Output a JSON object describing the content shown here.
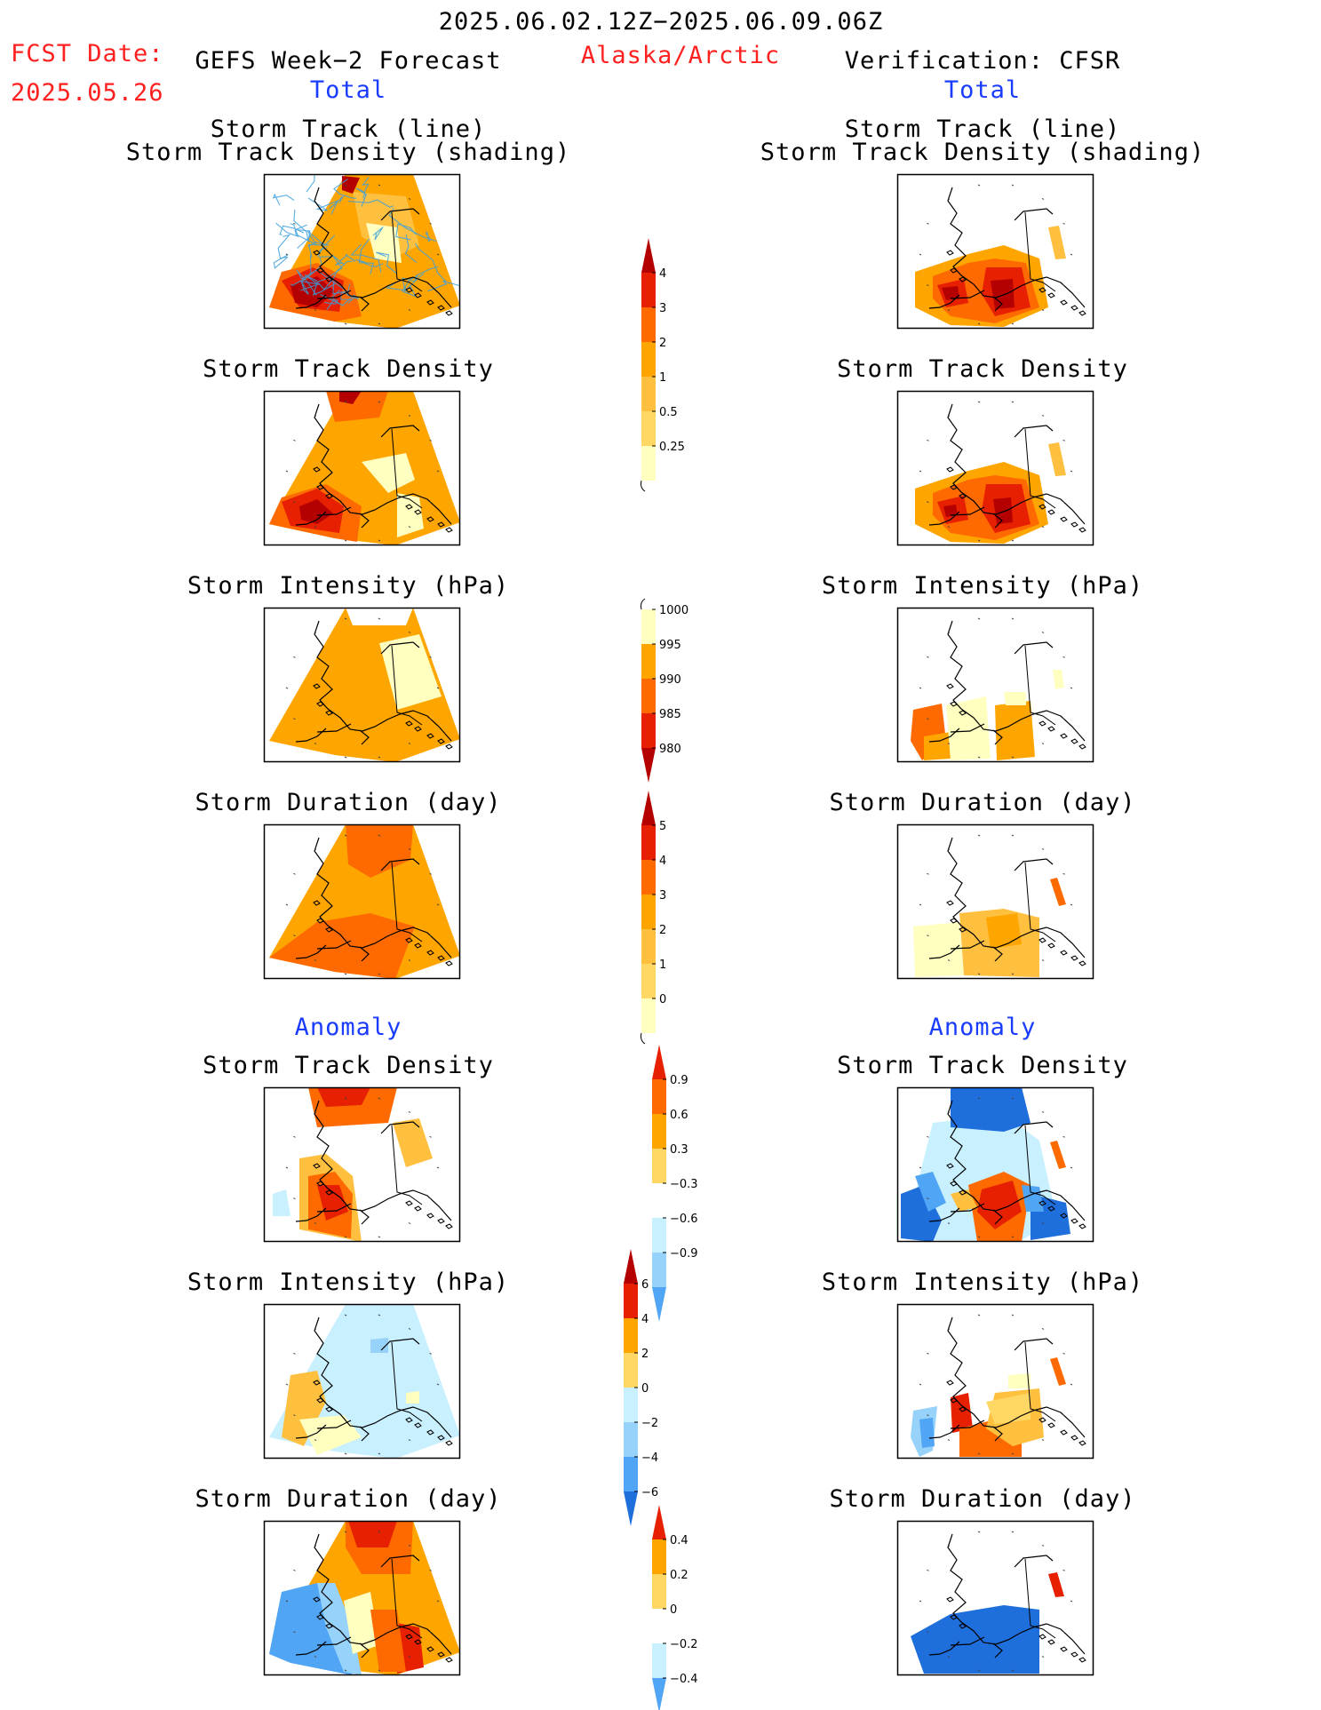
{
  "header": {
    "date_range": "2025.06.02.12Z−2025.06.09.06Z",
    "fcst_label": "FCST Date:",
    "fcst_date": "2025.05.26",
    "left_title": "GEFS Week−2 Forecast",
    "region": "Alaska/Arctic",
    "right_title": "Verification: CFSR",
    "left_total": "Total",
    "right_total": "Total",
    "left_anomaly": "Anomaly",
    "right_anomaly": "Anomaly"
  },
  "panels": {
    "track_l1": "Storm Track (line)",
    "track_l2": "Storm Track Density (shading)",
    "density": "Storm Track Density",
    "intensity": "Storm Intensity (hPa)",
    "duration": "Storm Duration (day)"
  },
  "colors": {
    "lightyellow": "#ffffc0",
    "yellow": "#ffd765",
    "lightorange": "#ffc040",
    "orange": "#ffa500",
    "darkorange": "#ff6a00",
    "red": "#e62000",
    "darkred": "#b40000",
    "lightblue": "#c8f0ff",
    "skyblue": "#96d2fa",
    "midblue": "#50a5f5",
    "blue": "#1e6edc",
    "track": "#3ca0dc"
  },
  "colorbars": [
    {
      "id": "cb1",
      "labels": [
        "4",
        "3",
        "2",
        "1",
        "0.5",
        "0.25"
      ]
    },
    {
      "id": "cb2",
      "labels": [
        "1000",
        "995",
        "990",
        "985",
        "980"
      ]
    },
    {
      "id": "cb3",
      "labels": [
        "5",
        "4",
        "3",
        "2",
        "1",
        "0"
      ]
    },
    {
      "id": "cb4",
      "labels": [
        "0.9",
        "0.6",
        "0.3",
        "−0.3",
        "−0.6",
        "−0.9"
      ]
    },
    {
      "id": "cb5",
      "labels": [
        "6",
        "4",
        "2",
        "0",
        "−2",
        "−4",
        "−6"
      ]
    },
    {
      "id": "cb6",
      "labels": [
        "0.4",
        "0.2",
        "0",
        "−0.2",
        "−0.4"
      ]
    }
  ]
}
